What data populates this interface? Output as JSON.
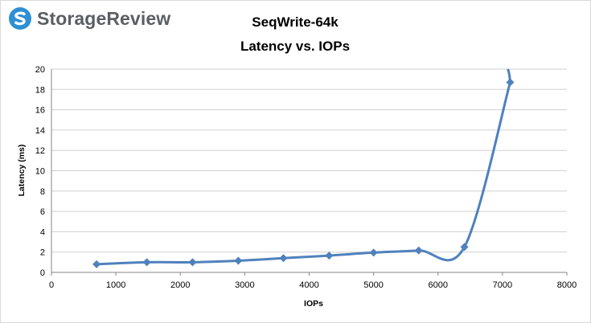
{
  "brand": {
    "name": "StorageReview",
    "logo_icon": "storagereview-logo-icon",
    "accent": "#2e8fd4"
  },
  "chart_data": {
    "type": "line",
    "title": "SeqWrite-64k",
    "subtitle": "Latency vs. IOPs",
    "xlabel": "IOPs",
    "ylabel": "Latency (ms)",
    "xlim": [
      0,
      8000
    ],
    "ylim": [
      0,
      20
    ],
    "xticks": [
      0,
      1000,
      2000,
      3000,
      4000,
      5000,
      6000,
      7000,
      8000
    ],
    "yticks": [
      0,
      2,
      4,
      6,
      8,
      10,
      12,
      14,
      16,
      18,
      20
    ],
    "grid": "horizontal",
    "legend": "none",
    "series": [
      {
        "color": "#4f81bd",
        "marker": "diamond",
        "x": [
          700,
          1480,
          2190,
          2900,
          3600,
          4310,
          5000,
          5700,
          6410,
          7120
        ],
        "y": [
          0.8,
          1.0,
          1.0,
          1.15,
          1.4,
          1.65,
          1.95,
          2.15,
          2.5,
          18.7
        ]
      }
    ]
  }
}
